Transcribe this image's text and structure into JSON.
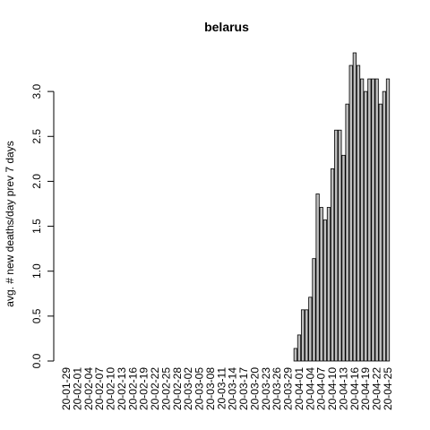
{
  "chart_data": {
    "type": "bar",
    "title": "belarus",
    "y_label": "avg. # new deaths/day prev  7  days",
    "categories": [
      "20-01-29",
      null,
      null,
      "20-02-01",
      null,
      null,
      "20-02-04",
      null,
      null,
      "20-02-07",
      null,
      null,
      "20-02-10",
      null,
      null,
      "20-02-13",
      null,
      null,
      "20-02-16",
      null,
      null,
      "20-02-19",
      null,
      null,
      "20-02-22",
      null,
      null,
      "20-02-25",
      null,
      null,
      "20-02-28",
      null,
      null,
      "20-03-02",
      null,
      null,
      "20-03-05",
      null,
      null,
      "20-03-08",
      null,
      null,
      "20-03-11",
      null,
      null,
      "20-03-14",
      null,
      null,
      "20-03-17",
      null,
      null,
      "20-03-20",
      null,
      null,
      "20-03-23",
      null,
      null,
      "20-03-26",
      null,
      null,
      "20-03-29",
      null,
      null,
      "20-04-01",
      null,
      null,
      "20-04-04",
      null,
      null,
      "20-04-07",
      null,
      null,
      "20-04-10",
      null,
      null,
      "20-04-13",
      null,
      null,
      "20-04-16",
      null,
      null,
      "20-04-19",
      null,
      null,
      "20-04-22",
      null,
      null,
      "20-04-25"
    ],
    "values": [
      0,
      0,
      0,
      0,
      0,
      0,
      0,
      0,
      0,
      0,
      0,
      0,
      0,
      0,
      0,
      0,
      0,
      0,
      0,
      0,
      0,
      0,
      0,
      0,
      0,
      0,
      0,
      0,
      0,
      0,
      0,
      0,
      0,
      0,
      0,
      0,
      0,
      0,
      0,
      0,
      0,
      0,
      0,
      0,
      0,
      0,
      0,
      0,
      0,
      0,
      0,
      0,
      0,
      0,
      0,
      0,
      0,
      0,
      0,
      0,
      0,
      0,
      0.14,
      0.29,
      0.57,
      0.57,
      0.71,
      1.14,
      1.86,
      1.71,
      1.57,
      1.71,
      2.14,
      2.57,
      2.57,
      2.29,
      2.86,
      3.29,
      3.43,
      3.29,
      3.14,
      3.0,
      3.14,
      3.14,
      3.14,
      2.86,
      3.0,
      3.14
    ],
    "color": "#bebebe",
    "ylim": [
      0,
      3.43
    ],
    "yticks": [
      {
        "value": 0,
        "label": "0.0"
      },
      {
        "value": 0.5,
        "label": "0.5"
      },
      {
        "value": 1,
        "label": "1.0"
      },
      {
        "value": 1.5,
        "label": "1.5"
      },
      {
        "value": 2,
        "label": "2.0"
      },
      {
        "value": 2.5,
        "label": "2.5"
      },
      {
        "value": 3,
        "label": "3.0"
      }
    ]
  }
}
